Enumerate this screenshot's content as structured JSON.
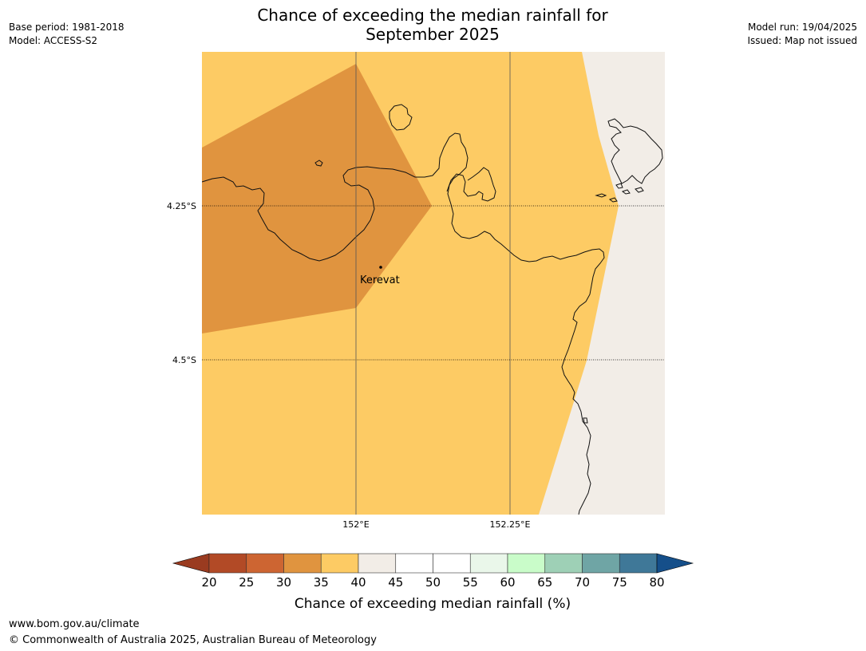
{
  "title_line1": "Chance of exceeding the median rainfall for",
  "title_line2": "September 2025",
  "meta_left": {
    "base_period": "Base period: 1981-2018",
    "model": "Model: ACCESS-S2"
  },
  "meta_right": {
    "model_run": "Model run: 19/04/2025",
    "issued": "Issued: Map not issued"
  },
  "map": {
    "lat_labels": [
      "4.25°S",
      "4.5°S"
    ],
    "lon_labels": [
      "152°E",
      "152.25°E"
    ],
    "place": {
      "name": "Kerevat"
    },
    "colors": {
      "band_30_35": "#e0943f",
      "band_35_40": "#fdcb64",
      "band_40_45": "#f2ede7",
      "coast": "#111111"
    }
  },
  "colorbar": {
    "label": "Chance of exceeding median rainfall (%)",
    "ticks": [
      "20",
      "25",
      "30",
      "35",
      "40",
      "45",
      "50",
      "55",
      "60",
      "65",
      "70",
      "75",
      "80"
    ],
    "under_color": "#9a3b20",
    "over_color": "#154f8a",
    "colors": [
      "#b24a26",
      "#cd6532",
      "#e0943f",
      "#fdcb64",
      "#f2ede7",
      "#ffffff",
      "#ffffff",
      "#eaf7ea",
      "#c9fcc9",
      "#9ed0b6",
      "#6fa5a5",
      "#3f7898"
    ]
  },
  "footer": {
    "url": "www.bom.gov.au/climate",
    "copyright": "© Commonwealth of Australia 2025, Australian Bureau of Meteorology"
  }
}
